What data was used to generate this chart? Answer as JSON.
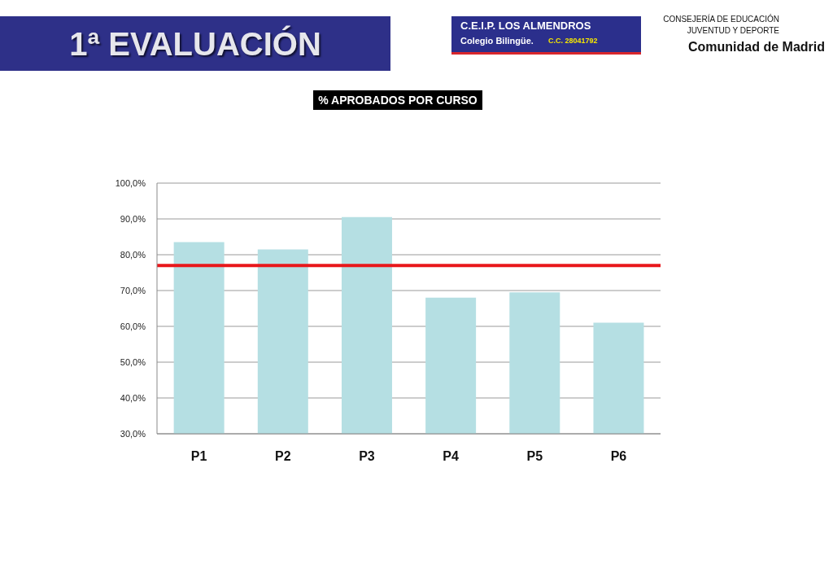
{
  "chart_data": {
    "type": "bar",
    "title": "1ª EVALUACIÓN",
    "subtitle": "% APROBADOS POR CURSO",
    "annotations": [
      "C.E.I.P. LOS ALMENDROS",
      "Colegio Bilingüe.",
      "C.C. 28041792",
      "CONSEJERÍA DE EDUCACIÓN",
      "JUVENTUD Y DEPORTE",
      "Comunidad de Madrid"
    ],
    "categories": [
      "P1",
      "P2",
      "P3",
      "P4",
      "P5",
      "P6"
    ],
    "values": [
      83.5,
      81.5,
      90.5,
      68,
      69.5,
      61
    ],
    "color": "#b5dfe3",
    "ylim": [
      30,
      100
    ],
    "yticks": [
      {
        "value": 30,
        "label": "30,0%"
      },
      {
        "value": 40,
        "label": "40,0%"
      },
      {
        "value": 50,
        "label": "50,0%"
      },
      {
        "value": 60,
        "label": "60,0%"
      },
      {
        "value": 70,
        "label": "70,0%"
      },
      {
        "value": 80,
        "label": "80,0%"
      },
      {
        "value": 90,
        "label": "90,0%"
      },
      {
        "value": 100,
        "label": "100,0%"
      }
    ],
    "grid": "y",
    "ref_lines": [
      {
        "axis": "y",
        "value": 77,
        "color": "#e8171b"
      }
    ]
  }
}
